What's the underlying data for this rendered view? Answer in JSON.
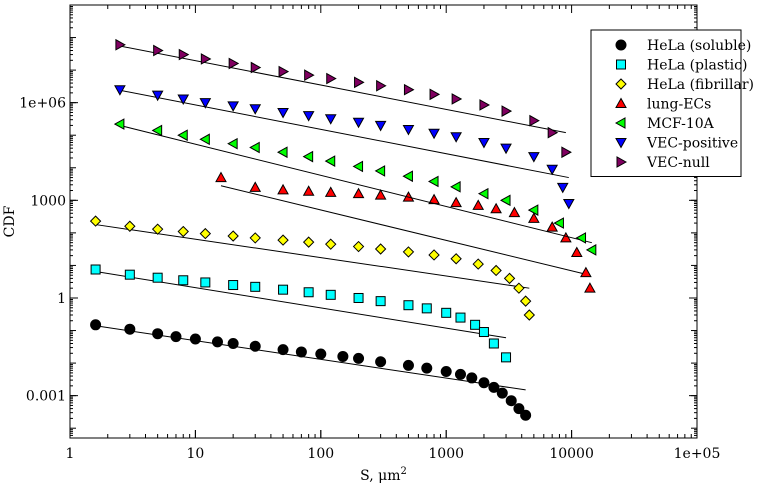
{
  "chart_data": {
    "type": "scatter",
    "title": "",
    "xlabel": "S, μm",
    "xlabel_superscript": "2",
    "ylabel": "CDF",
    "xscale": "log",
    "yscale": "log",
    "xlim": [
      1,
      100000
    ],
    "ylim": [
      5e-05,
      1000000000
    ],
    "x_ticks": [
      {
        "value": 1,
        "label": "1"
      },
      {
        "value": 10,
        "label": "10"
      },
      {
        "value": 100,
        "label": "100"
      },
      {
        "value": 1000,
        "label": "1000"
      },
      {
        "value": 10000,
        "label": "10000"
      },
      {
        "value": 100000,
        "label": "1e+05"
      }
    ],
    "y_ticks": [
      {
        "value": 0.001,
        "label": "0.001"
      },
      {
        "value": 1,
        "label": "1"
      },
      {
        "value": 1000,
        "label": "1000"
      },
      {
        "value": 1000000,
        "label": "1e+06"
      }
    ],
    "legend_position": "top-right",
    "series": [
      {
        "name": "HeLa (soluble)",
        "marker": "circle",
        "color": "#000000",
        "x": [
          1.6,
          3,
          5,
          7,
          10,
          15,
          20,
          30,
          50,
          70,
          100,
          150,
          200,
          300,
          500,
          700,
          1000,
          1300,
          1600,
          2000,
          2400,
          2800,
          3300,
          3800,
          4300
        ],
        "y": [
          0.15,
          0.11,
          0.08,
          0.065,
          0.055,
          0.045,
          0.04,
          0.033,
          0.026,
          0.022,
          0.019,
          0.016,
          0.014,
          0.011,
          0.0085,
          0.007,
          0.0055,
          0.0045,
          0.0035,
          0.0025,
          0.0018,
          0.0012,
          0.0007,
          0.0004,
          0.00025
        ],
        "fit_x": [
          1.6,
          4300
        ],
        "fit_y": [
          0.14,
          0.0015
        ]
      },
      {
        "name": "HeLa (plastic)",
        "marker": "square",
        "color": "#00ffff",
        "x": [
          1.6,
          3,
          5,
          8,
          12,
          20,
          30,
          50,
          80,
          120,
          200,
          300,
          500,
          700,
          1000,
          1300,
          1700,
          2000,
          2400,
          3000
        ],
        "y": [
          7.5,
          5.2,
          4.2,
          3.5,
          3.0,
          2.5,
          2.2,
          1.8,
          1.5,
          1.25,
          1.0,
          0.8,
          0.6,
          0.48,
          0.35,
          0.25,
          0.15,
          0.09,
          0.04,
          0.015
        ],
        "fit_x": [
          1.6,
          3000
        ],
        "fit_y": [
          6.5,
          0.06
        ]
      },
      {
        "name": "HeLa (fibrillar)",
        "marker": "diamond",
        "color": "#ffff00",
        "x": [
          1.6,
          3,
          5,
          8,
          12,
          20,
          30,
          50,
          80,
          120,
          200,
          300,
          500,
          800,
          1200,
          1800,
          2500,
          3200,
          3800,
          4300,
          4600
        ],
        "y": [
          230,
          160,
          130,
          110,
          95,
          80,
          70,
          60,
          52,
          45,
          38,
          32,
          26,
          21,
          16,
          11,
          7,
          4,
          2,
          0.8,
          0.3
        ],
        "fit_x": [
          1.6,
          4600
        ],
        "fit_y": [
          180,
          2
        ]
      },
      {
        "name": "lung-ECs",
        "marker": "triangle-up",
        "color": "#ff0000",
        "x": [
          16,
          30,
          50,
          80,
          120,
          200,
          300,
          500,
          800,
          1200,
          1800,
          2500,
          3500,
          5000,
          7000,
          9000,
          11000,
          13000,
          14000
        ],
        "y": [
          5000,
          2500,
          2100,
          1900,
          1750,
          1600,
          1450,
          1250,
          1050,
          850,
          700,
          550,
          420,
          280,
          150,
          70,
          25,
          6,
          2
        ],
        "fit_x": [
          16,
          14000
        ],
        "fit_y": [
          2800,
          5
        ]
      },
      {
        "name": "MCF-10A",
        "marker": "triangle-left",
        "color": "#00ff00",
        "x": [
          2.5,
          5,
          8,
          12,
          20,
          30,
          50,
          80,
          120,
          200,
          300,
          500,
          800,
          1200,
          2000,
          3000,
          5000,
          8000,
          12000,
          14500
        ],
        "y": [
          220000,
          140000,
          100000,
          75000,
          55000,
          42000,
          30000,
          22000,
          16000,
          11000,
          8000,
          5500,
          3800,
          2600,
          1600,
          1000,
          500,
          200,
          70,
          30
        ],
        "fit_x": [
          2.5,
          14500
        ],
        "fit_y": [
          200000,
          50
        ]
      },
      {
        "name": "VEC-positive",
        "marker": "triangle-down",
        "color": "#0000ff",
        "x": [
          2.5,
          5,
          8,
          12,
          20,
          30,
          50,
          80,
          120,
          200,
          300,
          500,
          800,
          1200,
          2000,
          3000,
          5000,
          7000,
          8500,
          9500
        ],
        "y": [
          2500000,
          1700000,
          1300000,
          1000000,
          800000,
          650000,
          500000,
          400000,
          320000,
          250000,
          200000,
          150000,
          115000,
          90000,
          60000,
          40000,
          22000,
          9000,
          2500,
          800
        ],
        "fit_x": [
          2.5,
          9500
        ],
        "fit_y": [
          2400000,
          5000
        ]
      },
      {
        "name": "VEC-null",
        "marker": "triangle-right",
        "color": "#800060",
        "x": [
          2.5,
          5,
          8,
          12,
          20,
          30,
          50,
          80,
          120,
          200,
          300,
          500,
          800,
          1200,
          2000,
          3000,
          5000,
          7000,
          9000
        ],
        "y": [
          60000000,
          40000000,
          30000000,
          22000000,
          16000000,
          12000000,
          9000000,
          7000000,
          5500000,
          4200000,
          3300000,
          2500000,
          1800000,
          1300000,
          850000,
          550000,
          280000,
          120000,
          30000
        ],
        "fit_x": [
          2.5,
          9000
        ],
        "fit_y": [
          55000000,
          120000
        ]
      }
    ]
  }
}
